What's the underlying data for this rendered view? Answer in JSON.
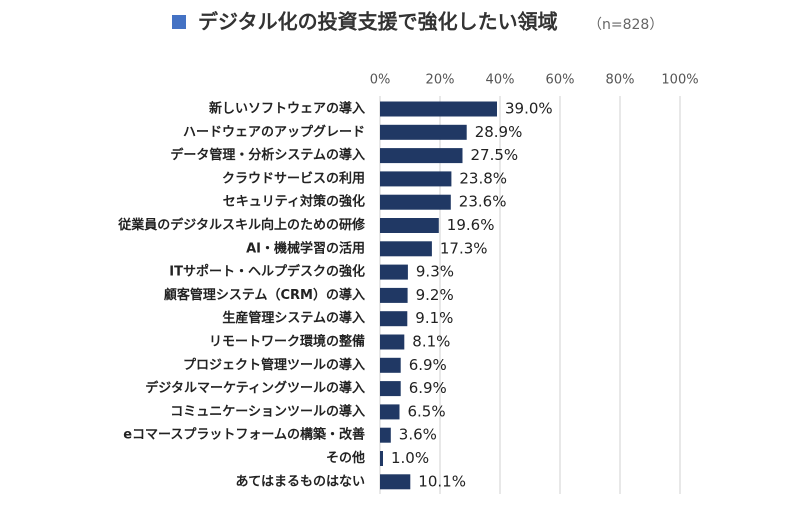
{
  "chart_data": {
    "type": "bar",
    "orientation": "horizontal",
    "title": "デジタル化の投資支援で強化したい領域",
    "subtitle": "（n=828）",
    "categories": [
      "新しいソフトウェアの導入",
      "ハードウェアのアップグレード",
      "データ管理・分析システムの導入",
      "クラウドサービスの利用",
      "セキュリティ対策の強化",
      "従業員のデジタルスキル向上のための研修",
      "AI・機械学習の活用",
      "ITサポート・ヘルプデスクの強化",
      "顧客管理システム（CRM）の導入",
      "生産管理システムの導入",
      "リモートワーク環境の整備",
      "プロジェクト管理ツールの導入",
      "デジタルマーケティングツールの導入",
      "コミュニケーションツールの導入",
      "eコマースプラットフォームの構築・改善",
      "その他",
      "あてはまるものはない"
    ],
    "values": [
      39.0,
      28.9,
      27.5,
      23.8,
      23.6,
      19.6,
      17.3,
      9.3,
      9.2,
      9.1,
      8.1,
      6.9,
      6.9,
      6.5,
      3.6,
      1.0,
      10.1
    ],
    "value_labels": [
      "39.0%",
      "28.9%",
      "27.5%",
      "23.8%",
      "23.6%",
      "19.6%",
      "17.3%",
      "9.3%",
      "9.2%",
      "9.1%",
      "8.1%",
      "6.9%",
      "6.9%",
      "6.5%",
      "3.6%",
      "1.0%",
      "10.1%"
    ],
    "color": "#203864",
    "xlim": [
      0,
      100
    ],
    "xticks": [
      {
        "value": 0,
        "label": "0%"
      },
      {
        "value": 20,
        "label": "20%"
      },
      {
        "value": 40,
        "label": "40%"
      },
      {
        "value": 60,
        "label": "60%"
      },
      {
        "value": 80,
        "label": "80%"
      },
      {
        "value": 100,
        "label": "100%"
      }
    ],
    "grid": true
  }
}
